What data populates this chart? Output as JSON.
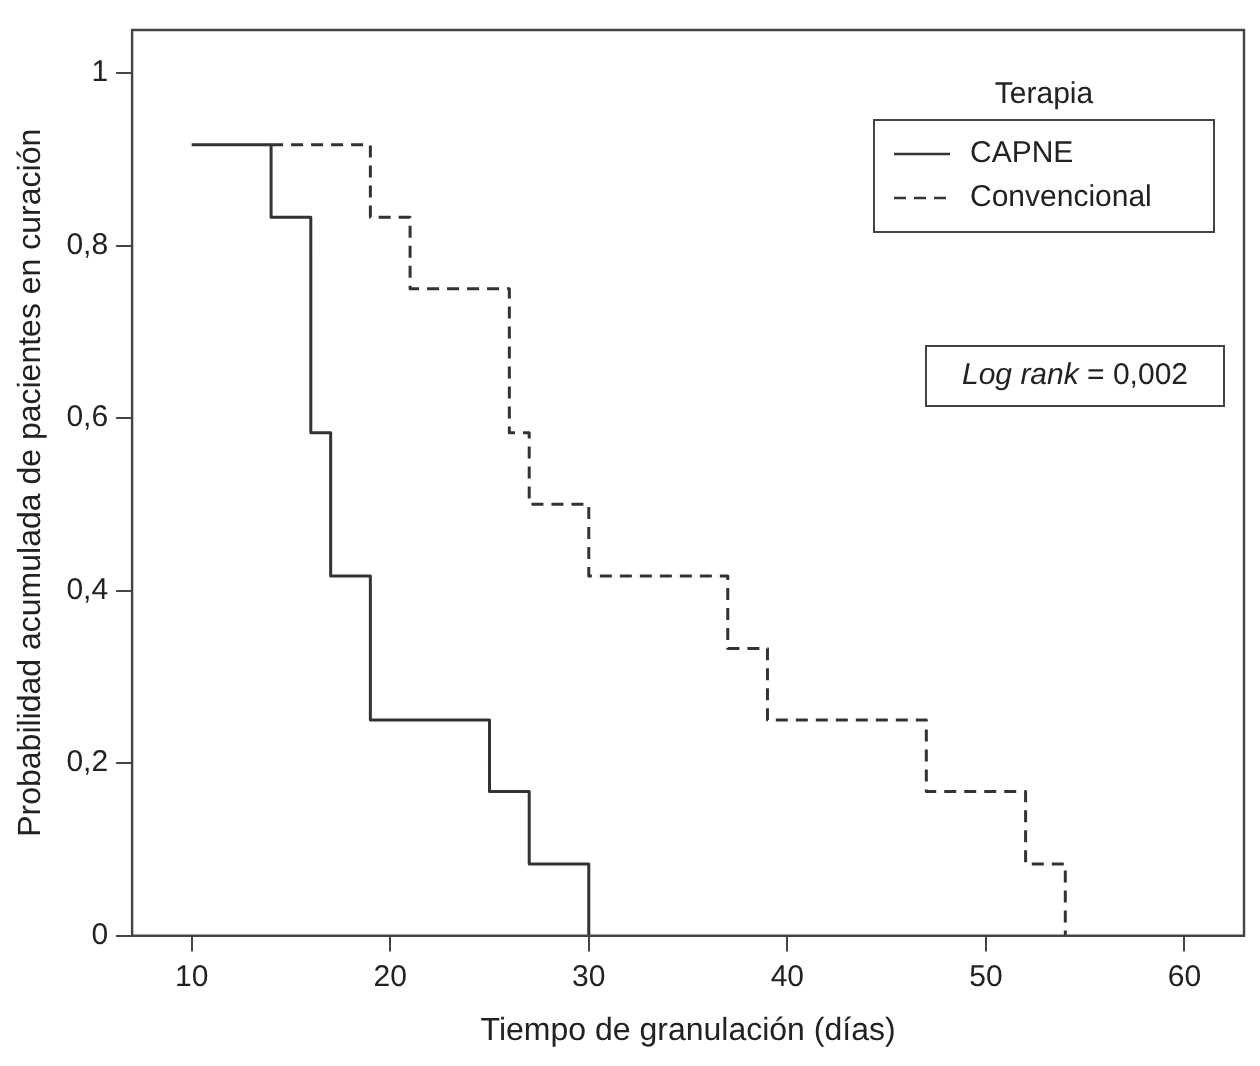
{
  "chart_data": {
    "type": "step",
    "xlabel": "Tiempo de granulación (días)",
    "ylabel": "Probabilidad acumulada de pacientes en curación",
    "legend_title": "Terapia",
    "legend": "top right",
    "annotations": [
      "Log rank = 0,002"
    ],
    "xlim": [
      7,
      63
    ],
    "xticks": [
      10,
      20,
      30,
      40,
      50,
      60
    ],
    "ylim": [
      0,
      1.05
    ],
    "yticks": [
      0,
      {
        "value": 0.2,
        "label": "0,2"
      },
      {
        "value": 0.4,
        "label": "0,4"
      },
      {
        "value": 0.6,
        "label": "0,6"
      },
      {
        "value": 0.8,
        "label": "0,8"
      },
      1
    ],
    "series": [
      {
        "name": "CAPNE",
        "color": "#333333",
        "line_style": "solid",
        "x": [
          10,
          14,
          16,
          17,
          19,
          25,
          27,
          30
        ],
        "values": [
          0.917,
          0.833,
          0.583,
          0.417,
          0.25,
          0.167,
          0.083,
          0
        ]
      },
      {
        "name": "Convencional",
        "color": "#333333",
        "line_style": "dashed",
        "x": [
          14,
          19,
          21,
          26,
          27,
          30,
          37,
          39,
          47,
          52,
          54
        ],
        "values": [
          0.917,
          0.833,
          0.75,
          0.583,
          0.5,
          0.417,
          0.333,
          0.25,
          0.167,
          0.083,
          0
        ]
      }
    ]
  }
}
